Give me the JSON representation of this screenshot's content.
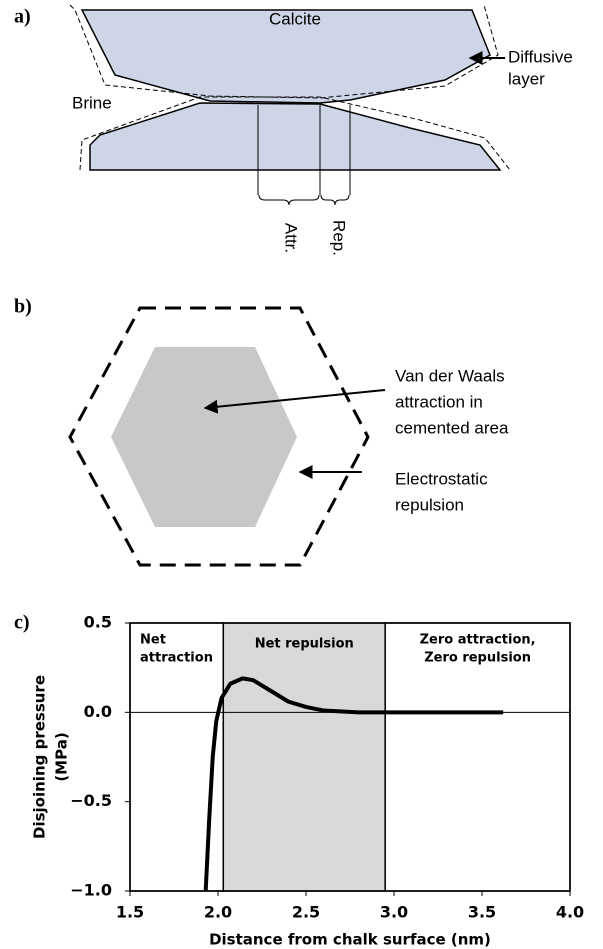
{
  "panel_a": {
    "label": "a)",
    "calcite": "Calcite",
    "diffusive": [
      "Diffusive",
      "layer"
    ],
    "brine": "Brine",
    "attr": "Attr.",
    "rep": "Rep."
  },
  "panel_b": {
    "label": "b)",
    "vdw": [
      "Van der Waals",
      "attraction in",
      "cemented area"
    ],
    "electro": [
      "Electrostatic",
      "repulsion"
    ]
  },
  "chart_data": {
    "type": "line",
    "panel_label": "c)",
    "xlabel": "Distance from chalk surface (nm)",
    "ylabel": [
      "Disjoining pressure",
      "(MPa)"
    ],
    "x": [
      1.93,
      1.95,
      1.97,
      1.99,
      2.02,
      2.07,
      2.14,
      2.2,
      2.3,
      2.4,
      2.5,
      2.6,
      2.8,
      3.0,
      3.3,
      3.62
    ],
    "values": [
      -1.0,
      -0.6,
      -0.25,
      -0.05,
      0.08,
      0.16,
      0.19,
      0.18,
      0.12,
      0.06,
      0.03,
      0.01,
      0.0,
      0.0,
      0.0,
      0.0
    ],
    "color": "#000000",
    "xlim": [
      1.5,
      4.0
    ],
    "ylim": [
      -1.0,
      0.5
    ],
    "xticks": [
      1.5,
      {
        "value": 2,
        "label": "2.0"
      },
      2.5,
      {
        "value": 3,
        "label": "3.0"
      },
      3.5,
      {
        "value": 4,
        "label": "4.0"
      }
    ],
    "yticks": [
      {
        "value": -1,
        "label": "−1.0"
      },
      {
        "value": -0.5,
        "label": "−0.5"
      },
      {
        "value": 0,
        "label": "0.0"
      },
      0.5
    ],
    "regions": [
      {
        "lines": [
          "Net",
          "attraction"
        ],
        "start": 1.5,
        "end": 2.03,
        "color": "#ffffff"
      },
      {
        "lines": [
          "Net repulsion"
        ],
        "start": 2.03,
        "end": 2.95,
        "color": "#d9d9d9"
      },
      {
        "lines": [
          "Zero attraction,",
          "Zero repulsion"
        ],
        "start": 2.95,
        "end": 4.0,
        "color": "#ffffff"
      }
    ]
  }
}
